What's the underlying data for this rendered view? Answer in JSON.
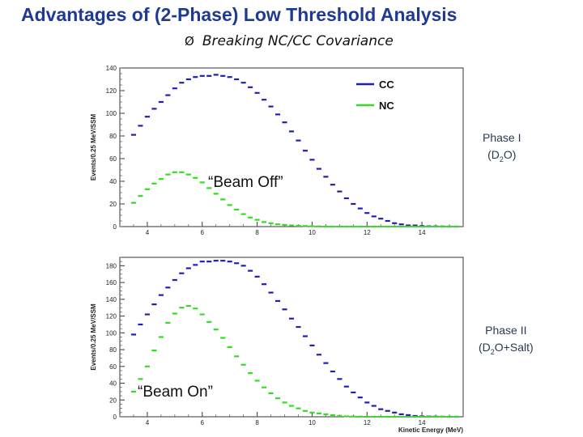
{
  "slide": {
    "title": "Advantages of (2-Phase) Low Threshold Analysis",
    "bullet_arrow": "Ø",
    "bullet_text": "Breaking NC/CC Covariance",
    "phase1_line1": "Phase I",
    "phase1_line2_pre": "(D",
    "phase1_line2_sub": "2",
    "phase1_line2_post": "O)",
    "phase2_line1": "Phase II",
    "phase2_line2_pre": "(D",
    "phase2_line2_sub": "2",
    "phase2_line2_post": "O+Salt)",
    "beam_off": "“Beam Off”",
    "beam_on": "“Beam On”"
  },
  "colors": {
    "cc": "#1f1fb0",
    "nc": "#33dd22",
    "title": "#1f3a93",
    "phase": "#2a3a55"
  },
  "chart_data": [
    {
      "type": "line",
      "panel": "Phase I",
      "ylabel": "Events/0.25 MeV/SSM",
      "xlabel": "",
      "xlim": [
        3,
        15.5
      ],
      "ylim": [
        0,
        140
      ],
      "xticks": [
        4,
        6,
        8,
        10,
        12,
        14
      ],
      "yticks": [
        0,
        20,
        40,
        60,
        80,
        100,
        120,
        140
      ],
      "legend": [
        {
          "name": "CC",
          "key": "cc"
        },
        {
          "name": "NC",
          "key": "nc"
        }
      ],
      "x": [
        3.5,
        3.75,
        4,
        4.25,
        4.5,
        4.75,
        5,
        5.25,
        5.5,
        5.75,
        6,
        6.25,
        6.5,
        6.75,
        7,
        7.25,
        7.5,
        7.75,
        8,
        8.25,
        8.5,
        8.75,
        9,
        9.25,
        9.5,
        9.75,
        10,
        10.25,
        10.5,
        10.75,
        11,
        11.25,
        11.5,
        11.75,
        12,
        12.25,
        12.5,
        12.75,
        13,
        13.25,
        13.5,
        13.75,
        14,
        14.25,
        14.5,
        14.75,
        15,
        15.25
      ],
      "series": [
        {
          "name": "CC",
          "key": "cc",
          "values": [
            81,
            89,
            97,
            104,
            110,
            116,
            122,
            127,
            130,
            132,
            133,
            133,
            134,
            133,
            132,
            130,
            127,
            123,
            118,
            112,
            106,
            99,
            92,
            84,
            76,
            67,
            59,
            51,
            44,
            37,
            31,
            25,
            20,
            16,
            12,
            9,
            7,
            5,
            3,
            2,
            1,
            1,
            0.5,
            0.3,
            0.2,
            0.1,
            0,
            0
          ]
        },
        {
          "name": "NC",
          "key": "nc",
          "values": [
            21,
            27,
            33,
            38,
            42,
            46,
            48,
            48,
            46,
            43,
            39,
            34,
            29,
            24,
            19,
            15,
            11,
            8,
            6,
            4,
            3,
            2,
            1.5,
            1,
            0.7,
            0.5,
            0.3,
            0.2,
            0.1,
            0,
            0,
            0,
            0,
            0,
            0,
            0,
            0,
            0,
            0,
            0,
            0,
            0,
            0,
            0,
            0,
            0,
            0,
            0
          ]
        }
      ]
    },
    {
      "type": "line",
      "panel": "Phase II",
      "ylabel": "Events/0.25 MeV/SSM",
      "xlabel": "Kinetic Energy (MeV)",
      "xlim": [
        3,
        15.5
      ],
      "ylim": [
        0,
        190
      ],
      "xticks": [
        4,
        6,
        8,
        10,
        12,
        14
      ],
      "yticks": [
        0,
        20,
        40,
        60,
        80,
        100,
        120,
        140,
        160,
        180
      ],
      "legend": [],
      "x": [
        3.5,
        3.75,
        4,
        4.25,
        4.5,
        4.75,
        5,
        5.25,
        5.5,
        5.75,
        6,
        6.25,
        6.5,
        6.75,
        7,
        7.25,
        7.5,
        7.75,
        8,
        8.25,
        8.5,
        8.75,
        9,
        9.25,
        9.5,
        9.75,
        10,
        10.25,
        10.5,
        10.75,
        11,
        11.25,
        11.5,
        11.75,
        12,
        12.25,
        12.5,
        12.75,
        13,
        13.25,
        13.5,
        13.75,
        14,
        14.25,
        14.5,
        14.75,
        15,
        15.25
      ],
      "series": [
        {
          "name": "CC",
          "key": "cc",
          "values": [
            98,
            110,
            122,
            134,
            145,
            154,
            163,
            171,
            177,
            181,
            185,
            185,
            186,
            186,
            185,
            183,
            180,
            174,
            167,
            158,
            148,
            138,
            128,
            117,
            107,
            96,
            85,
            74,
            64,
            54,
            45,
            36,
            29,
            23,
            17,
            13,
            9,
            7,
            5,
            3,
            2,
            1,
            0.5,
            0.3,
            0.2,
            0.1,
            0,
            0
          ]
        },
        {
          "name": "NC",
          "key": "nc",
          "values": [
            30,
            45,
            60,
            79,
            95,
            112,
            123,
            130,
            132,
            129,
            122,
            113,
            104,
            94,
            83,
            72,
            62,
            52,
            43,
            35,
            28,
            22,
            17,
            13,
            10,
            7,
            5,
            4,
            3,
            2,
            1,
            0.5,
            0.3,
            0.2,
            0,
            0,
            0,
            0,
            0,
            0,
            0,
            0,
            0,
            0,
            0,
            0,
            0,
            0
          ]
        }
      ]
    }
  ]
}
